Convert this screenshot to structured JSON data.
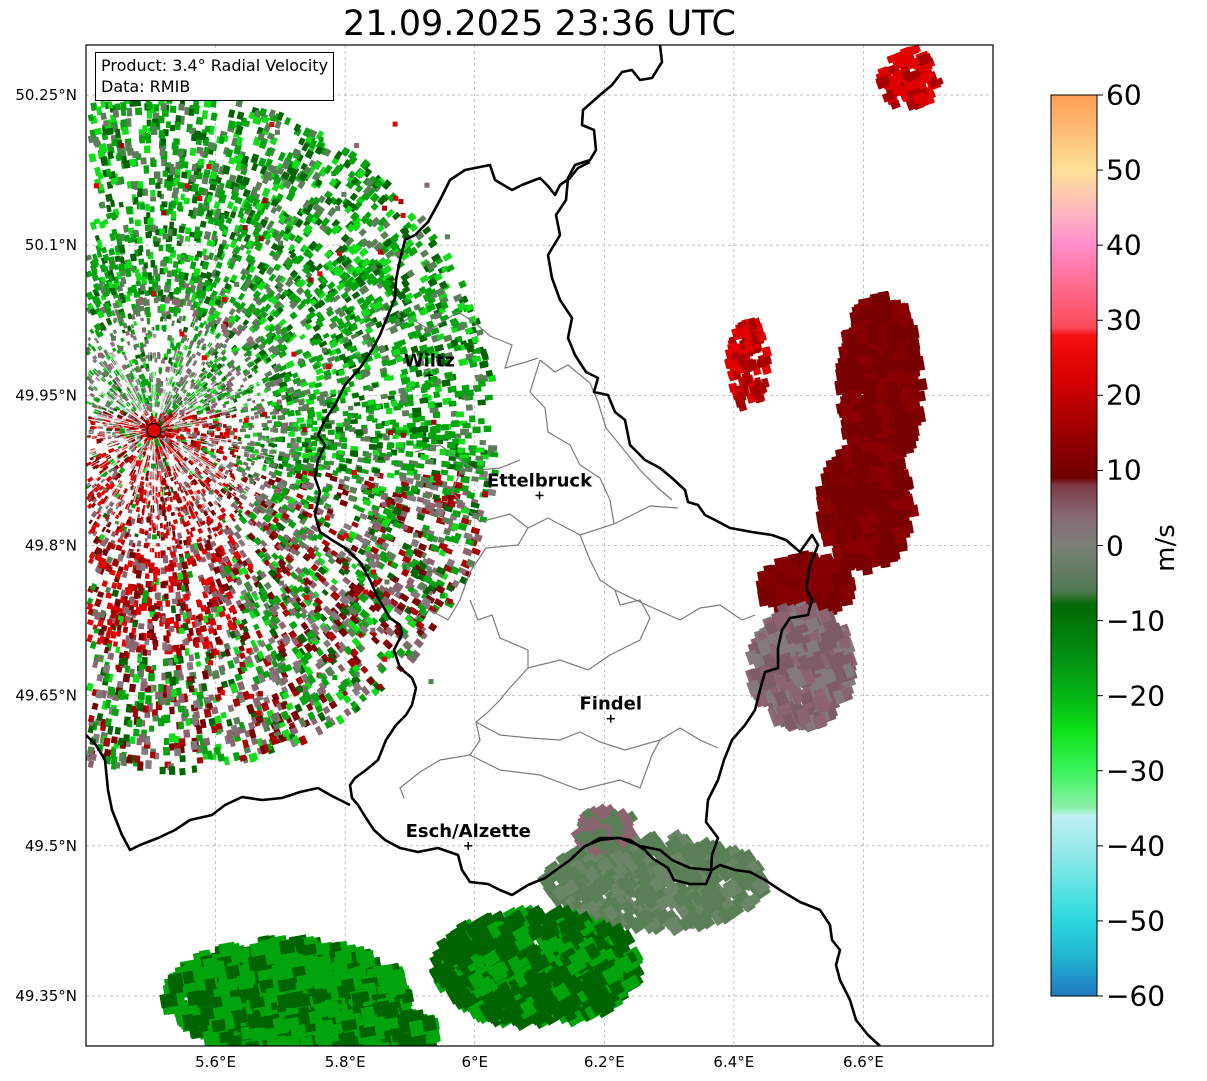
{
  "title": "21.09.2025 23:36 UTC",
  "info": {
    "product": "Product: 3.4° Radial Velocity",
    "data": "Data: RMIB"
  },
  "map": {
    "lon_range": [
      5.4,
      6.8
    ],
    "lat_range": [
      49.3,
      50.3
    ],
    "grid": true,
    "lon_ticks": [
      "5.6°E",
      "5.8°E",
      "6°E",
      "6.2°E",
      "6.4°E",
      "6.6°E"
    ],
    "lat_ticks": [
      "49.35°N",
      "49.5°N",
      "49.65°N",
      "49.8°N",
      "49.95°N",
      "50.1°N",
      "50.25°N"
    ]
  },
  "radar_site": {
    "lon": 5.505,
    "lat": 49.915,
    "color": "#dd0000"
  },
  "cities": [
    {
      "name": "Wiltz",
      "lon": 5.93,
      "lat": 49.97
    },
    {
      "name": "Ettelbruck",
      "lon": 6.1,
      "lat": 49.85
    },
    {
      "name": "Findel",
      "lon": 6.21,
      "lat": 49.627
    },
    {
      "name": "Esch/Alzette",
      "lon": 5.99,
      "lat": 49.5
    }
  ],
  "colorbar": {
    "label": "m/s",
    "min": -60,
    "max": 60,
    "ticks": [
      "60",
      "50",
      "40",
      "30",
      "20",
      "10",
      "0",
      "−10",
      "−20",
      "−30",
      "−40",
      "−50",
      "−60"
    ],
    "stops": [
      {
        "v": -60,
        "c": "#1f78c0"
      },
      {
        "v": -55,
        "c": "#22b2cf"
      },
      {
        "v": -50,
        "c": "#2ad8dd"
      },
      {
        "v": -45,
        "c": "#63e4e4"
      },
      {
        "v": -40,
        "c": "#9de9ec"
      },
      {
        "v": -36,
        "c": "#bff0f2"
      },
      {
        "v": -35,
        "c": "#8ef0aa"
      },
      {
        "v": -30,
        "c": "#3af35a"
      },
      {
        "v": -25,
        "c": "#0fe41c"
      },
      {
        "v": -20,
        "c": "#05b414"
      },
      {
        "v": -14,
        "c": "#038a12"
      },
      {
        "v": -8,
        "c": "#006a00"
      },
      {
        "v": -6,
        "c": "#4f7a52"
      },
      {
        "v": 0,
        "c": "#7c8078"
      },
      {
        "v": 4,
        "c": "#896873"
      },
      {
        "v": 8,
        "c": "#7d3a46"
      },
      {
        "v": 9,
        "c": "#700000"
      },
      {
        "v": 15,
        "c": "#9c0000"
      },
      {
        "v": 22,
        "c": "#d60000"
      },
      {
        "v": 28,
        "c": "#f51010"
      },
      {
        "v": 29,
        "c": "#fa4a5a"
      },
      {
        "v": 35,
        "c": "#ff6e94"
      },
      {
        "v": 40,
        "c": "#ff8cc9"
      },
      {
        "v": 44,
        "c": "#ffb4c4"
      },
      {
        "v": 50,
        "c": "#ffe097"
      },
      {
        "v": 55,
        "c": "#ffbe76"
      },
      {
        "v": 60,
        "c": "#ff9d55"
      }
    ]
  },
  "echo_colors": {
    "green_dark": "#006400",
    "green": "#02a40e",
    "green_bright": "#10dd1a",
    "gray_green": "#5a7e56",
    "gray": "#847a7e",
    "mauve": "#8b6470",
    "maroon": "#780000",
    "red_dark": "#a80000",
    "red": "#e00000"
  }
}
